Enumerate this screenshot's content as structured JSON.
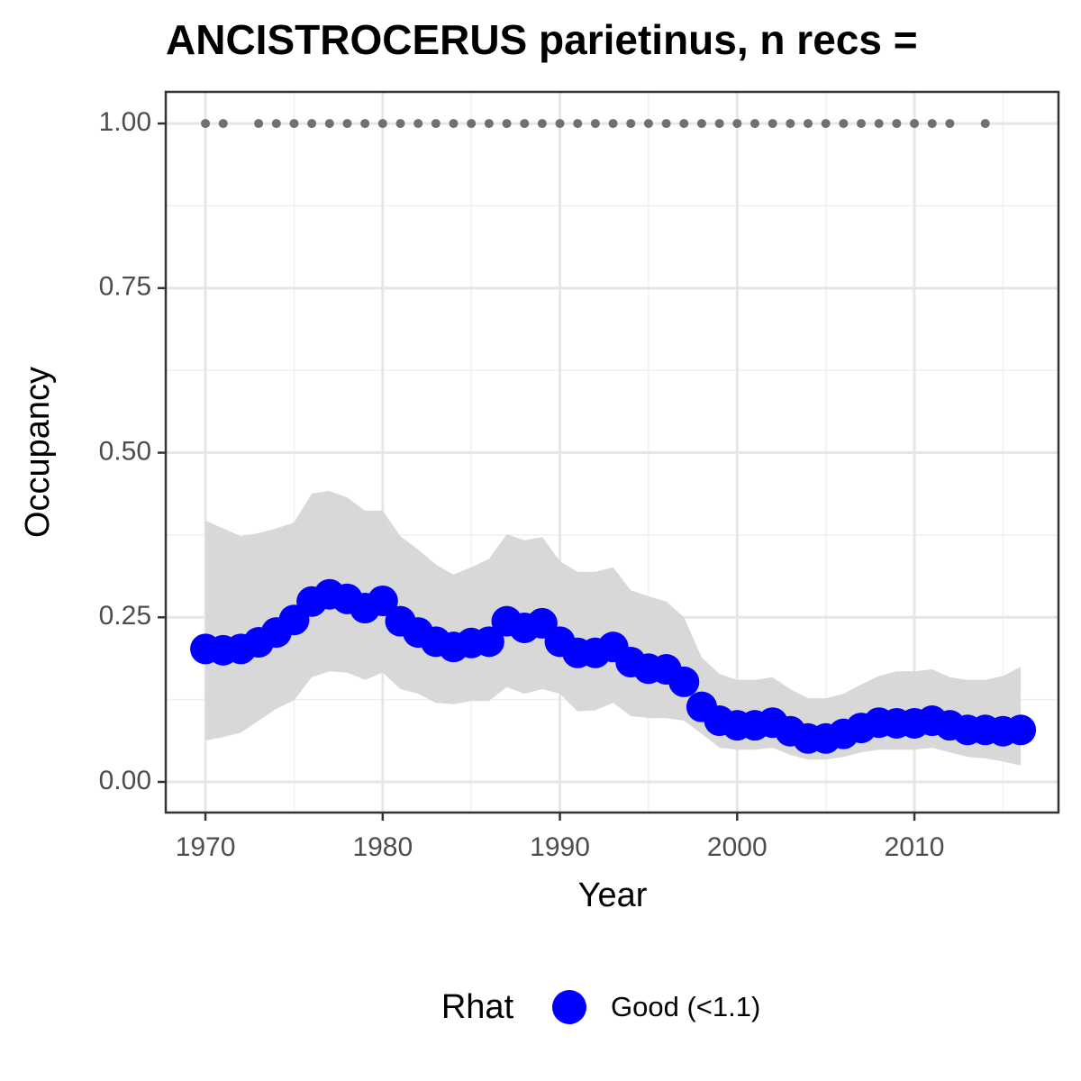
{
  "chart_data": {
    "type": "scatter",
    "title": "ANCISTROCERUS parietinus, n recs =",
    "x_label": "Year",
    "y_label": "Occupancy",
    "x": [
      1970,
      1971,
      1972,
      1973,
      1974,
      1975,
      1976,
      1977,
      1978,
      1979,
      1980,
      1981,
      1982,
      1983,
      1984,
      1985,
      1986,
      1987,
      1988,
      1989,
      1990,
      1991,
      1992,
      1993,
      1994,
      1995,
      1996,
      1997,
      1998,
      1999,
      2000,
      2001,
      2002,
      2003,
      2004,
      2005,
      2006,
      2007,
      2008,
      2009,
      2010,
      2011,
      2012,
      2013,
      2014,
      2015,
      2016
    ],
    "series": [
      {
        "name": "Good (<1.1)",
        "color": "#0000ff",
        "values": [
          0.202,
          0.2,
          0.202,
          0.212,
          0.227,
          0.246,
          0.274,
          0.285,
          0.278,
          0.264,
          0.275,
          0.244,
          0.227,
          0.213,
          0.205,
          0.211,
          0.213,
          0.244,
          0.234,
          0.241,
          0.213,
          0.196,
          0.196,
          0.205,
          0.182,
          0.172,
          0.171,
          0.152,
          0.114,
          0.093,
          0.086,
          0.086,
          0.09,
          0.077,
          0.066,
          0.066,
          0.073,
          0.082,
          0.09,
          0.089,
          0.089,
          0.093,
          0.086,
          0.079,
          0.079,
          0.077,
          0.079
        ]
      }
    ],
    "ribbon": {
      "color": "#d6d6d6",
      "upper": [
        0.397,
        0.385,
        0.373,
        0.378,
        0.385,
        0.394,
        0.438,
        0.442,
        0.432,
        0.412,
        0.412,
        0.373,
        0.353,
        0.33,
        0.315,
        0.326,
        0.339,
        0.376,
        0.367,
        0.372,
        0.335,
        0.319,
        0.319,
        0.326,
        0.291,
        0.282,
        0.274,
        0.25,
        0.189,
        0.164,
        0.155,
        0.155,
        0.159,
        0.141,
        0.127,
        0.127,
        0.134,
        0.148,
        0.161,
        0.168,
        0.168,
        0.171,
        0.159,
        0.155,
        0.155,
        0.161,
        0.175
      ],
      "lower": [
        0.063,
        0.068,
        0.075,
        0.093,
        0.111,
        0.124,
        0.159,
        0.168,
        0.166,
        0.155,
        0.166,
        0.141,
        0.134,
        0.12,
        0.118,
        0.123,
        0.123,
        0.144,
        0.134,
        0.141,
        0.134,
        0.107,
        0.109,
        0.12,
        0.1,
        0.097,
        0.097,
        0.093,
        0.073,
        0.052,
        0.049,
        0.049,
        0.052,
        0.041,
        0.034,
        0.034,
        0.038,
        0.045,
        0.049,
        0.049,
        0.049,
        0.052,
        0.045,
        0.038,
        0.036,
        0.031,
        0.025
      ]
    },
    "records": {
      "color": "#707070",
      "x": [
        1970,
        1971,
        1973,
        1974,
        1975,
        1976,
        1977,
        1978,
        1979,
        1980,
        1981,
        1982,
        1983,
        1984,
        1985,
        1986,
        1987,
        1988,
        1989,
        1990,
        1991,
        1992,
        1993,
        1994,
        1995,
        1996,
        1997,
        1998,
        1999,
        2000,
        2001,
        2002,
        2003,
        2004,
        2005,
        2006,
        2007,
        2008,
        2009,
        2010,
        2011,
        2012,
        2014
      ],
      "values": [
        1,
        1,
        1,
        1,
        1,
        1,
        1,
        1,
        1,
        1,
        1,
        1,
        1,
        1,
        1,
        1,
        1,
        1,
        1,
        1,
        1,
        1,
        1,
        1,
        1,
        1,
        1,
        1,
        1,
        1,
        1,
        1,
        1,
        1,
        1,
        1,
        1,
        1,
        1,
        1,
        1,
        1,
        1
      ]
    },
    "legend_title": "Rhat",
    "legend": "bottom",
    "xlim": [
      1967.76,
      2018.13
    ],
    "ylim": [
      -0.0465,
      1.048
    ],
    "xticks": [
      1970,
      1980,
      1990,
      2000,
      2010
    ],
    "yticks": [
      {
        "value": 0,
        "label": "0.00"
      },
      {
        "value": 0.25,
        "label": "0.25"
      },
      {
        "value": 0.5,
        "label": "0.50"
      },
      {
        "value": 0.75,
        "label": "0.75"
      },
      {
        "value": 1,
        "label": "1.00"
      }
    ],
    "grid": true
  }
}
